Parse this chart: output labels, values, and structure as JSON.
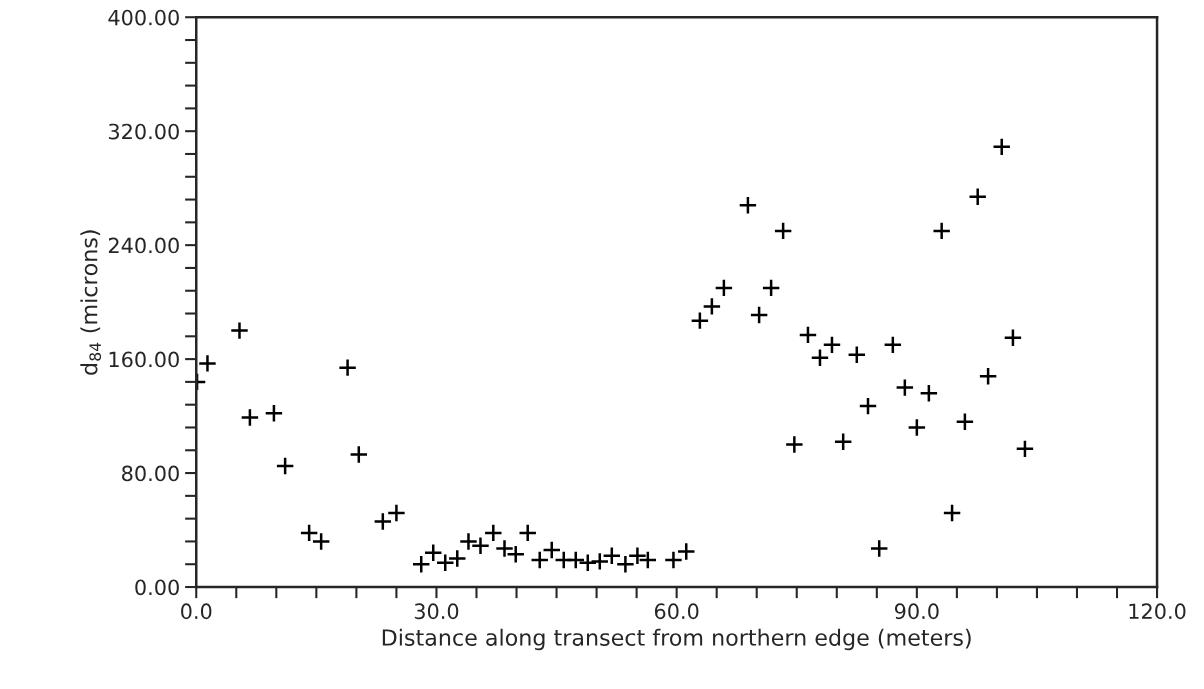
{
  "chart_data": {
    "type": "scatter",
    "xlabel": "Distance along transect from northern edge (meters)",
    "ylabel": "d$_{84}$ (microns)",
    "xlim": [
      0,
      120
    ],
    "ylim": [
      0,
      400
    ],
    "marker": "cross",
    "grid": false,
    "xticks": [
      {
        "value": 0,
        "label": "0.0"
      },
      {
        "value": 5,
        "label": null
      },
      {
        "value": 10,
        "label": null
      },
      {
        "value": 15,
        "label": null
      },
      {
        "value": 20,
        "label": null
      },
      {
        "value": 25,
        "label": null
      },
      {
        "value": 30,
        "label": "30.0"
      },
      {
        "value": 35,
        "label": null
      },
      {
        "value": 40,
        "label": null
      },
      {
        "value": 45,
        "label": null
      },
      {
        "value": 50,
        "label": null
      },
      {
        "value": 55,
        "label": null
      },
      {
        "value": 60,
        "label": "60.0"
      },
      {
        "value": 65,
        "label": null
      },
      {
        "value": 70,
        "label": null
      },
      {
        "value": 75,
        "label": null
      },
      {
        "value": 80,
        "label": null
      },
      {
        "value": 85,
        "label": null
      },
      {
        "value": 90,
        "label": "90.0"
      },
      {
        "value": 95,
        "label": null
      },
      {
        "value": 100,
        "label": null
      },
      {
        "value": 105,
        "label": null
      },
      {
        "value": 110,
        "label": null
      },
      {
        "value": 115,
        "label": null
      },
      {
        "value": 120,
        "label": "120.0"
      }
    ],
    "yticks": [
      {
        "value": 0,
        "label": "0.00"
      },
      {
        "value": 16,
        "label": null
      },
      {
        "value": 32,
        "label": null
      },
      {
        "value": 48,
        "label": null
      },
      {
        "value": 64,
        "label": null
      },
      {
        "value": 80,
        "label": "80.00"
      },
      {
        "value": 96,
        "label": null
      },
      {
        "value": 112,
        "label": null
      },
      {
        "value": 128,
        "label": null
      },
      {
        "value": 144,
        "label": null
      },
      {
        "value": 160,
        "label": "160.00"
      },
      {
        "value": 176,
        "label": null
      },
      {
        "value": 192,
        "label": null
      },
      {
        "value": 208,
        "label": null
      },
      {
        "value": 224,
        "label": null
      },
      {
        "value": 240,
        "label": "240.00"
      },
      {
        "value": 256,
        "label": null
      },
      {
        "value": 272,
        "label": null
      },
      {
        "value": 288,
        "label": null
      },
      {
        "value": 304,
        "label": null
      },
      {
        "value": 320,
        "label": "320.00"
      },
      {
        "value": 336,
        "label": null
      },
      {
        "value": 352,
        "label": null
      },
      {
        "value": 368,
        "label": null
      },
      {
        "value": 384,
        "label": null
      },
      {
        "value": 400,
        "label": "400.00"
      }
    ],
    "series": [
      {
        "color": "#000000",
        "x": [
          0.1,
          1.4,
          5.4,
          6.7,
          9.7,
          11.1,
          14.1,
          15.6,
          18.9,
          20.3,
          23.3,
          25.0,
          28.1,
          29.6,
          31.1,
          32.6,
          34.0,
          35.5,
          37.1,
          38.5,
          39.9,
          41.4,
          42.9,
          44.4,
          45.9,
          47.4,
          48.9,
          50.4,
          51.9,
          53.6,
          55.1,
          56.4,
          59.6,
          61.2,
          62.9,
          64.4,
          65.9,
          68.9,
          70.3,
          71.8,
          73.3,
          74.7,
          76.4,
          77.9,
          79.4,
          80.8,
          82.5,
          83.9,
          85.3,
          87.0,
          88.5,
          90.0,
          91.5,
          93.1,
          94.4,
          96.0,
          97.6,
          98.9,
          100.6,
          102.0,
          103.5
        ],
        "values": [
          144,
          157,
          180,
          119,
          122,
          85,
          38,
          32,
          154,
          93,
          46,
          52,
          16,
          24,
          17,
          20,
          32,
          29,
          38,
          27,
          23,
          38,
          19,
          26,
          19,
          19,
          17,
          18,
          22,
          16,
          22,
          19,
          19,
          25,
          187,
          197,
          210,
          268,
          191,
          210,
          250,
          100,
          177,
          161,
          170,
          102,
          163,
          127,
          27,
          170,
          140,
          112,
          136,
          250,
          52,
          116,
          274,
          148,
          309,
          175,
          97
        ]
      }
    ]
  }
}
